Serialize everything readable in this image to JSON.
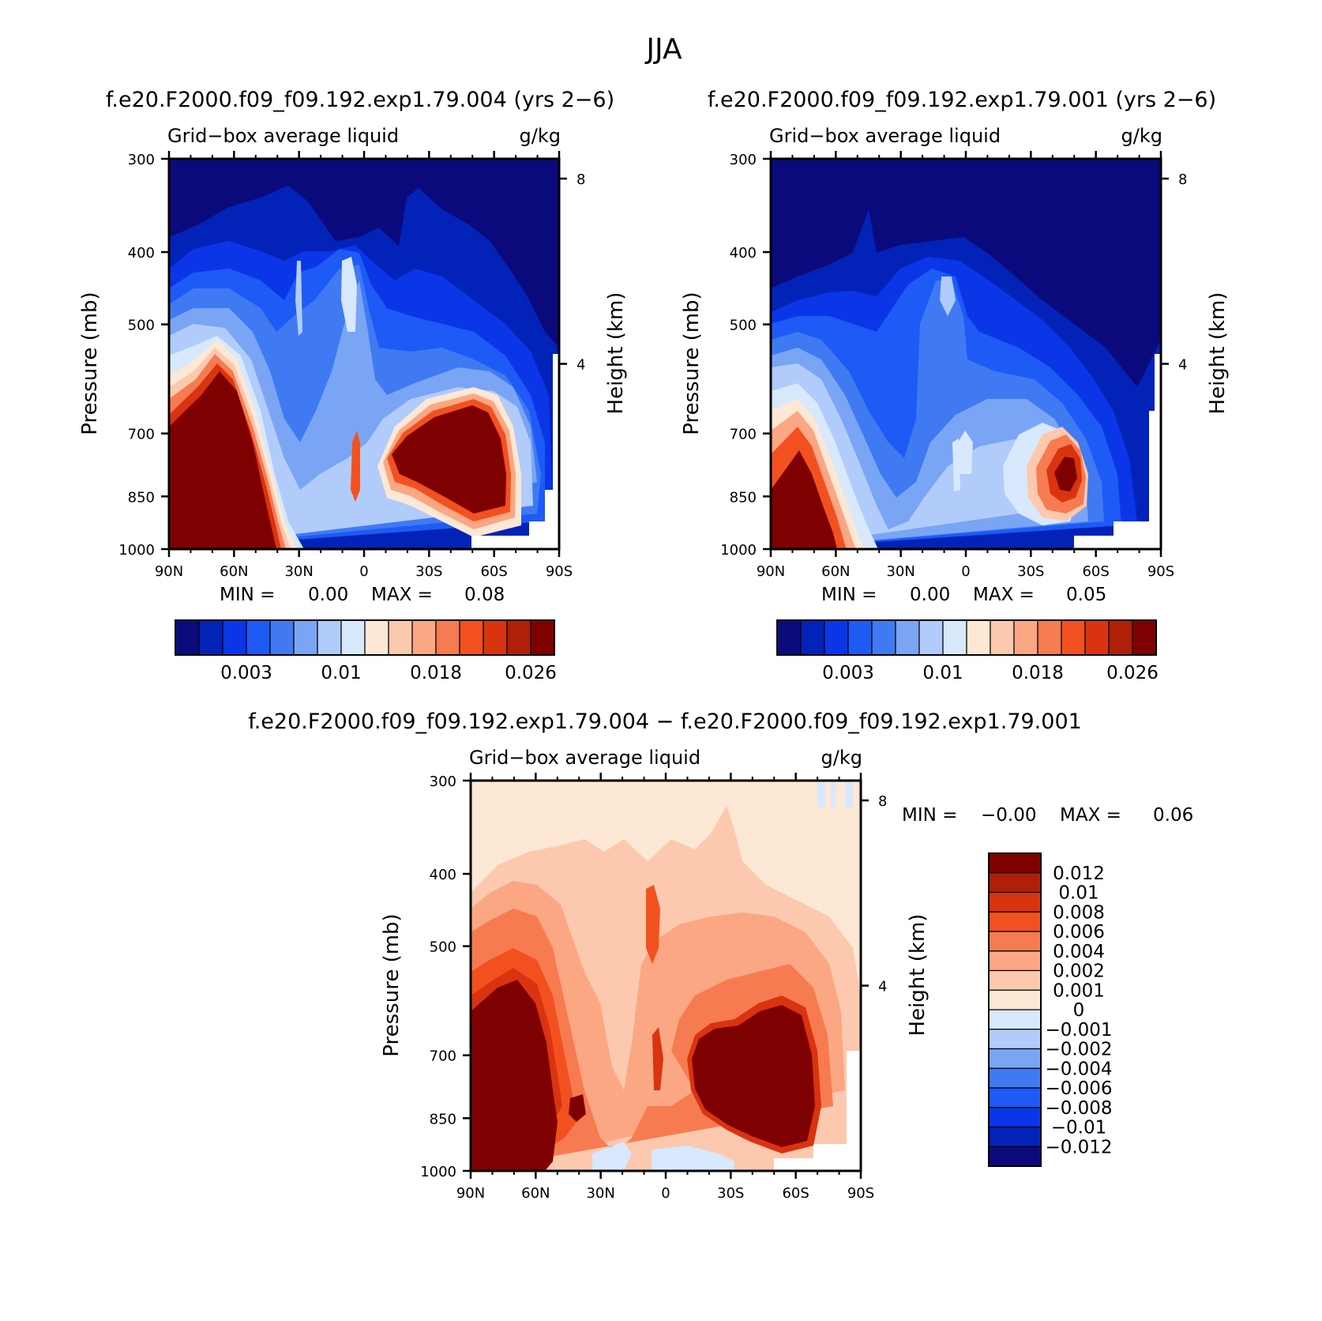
{
  "figure": {
    "title": "JJA"
  },
  "chart_data": [
    {
      "type": "heatmap",
      "title": "f.e20.F2000.f09_f09.192.exp1.79.004 (yrs 2−6)",
      "variable": "Grid−box average liquid",
      "units": "g/kg",
      "ylabel": "Pressure (mb)",
      "y2label": "Height (km)",
      "x_ticks": [
        "90N",
        "60N",
        "30N",
        "0",
        "30S",
        "60S",
        "90S"
      ],
      "y_ticks": [
        "300",
        "400",
        "500",
        "700",
        "850",
        "1000"
      ],
      "y2_ticks": [
        "8",
        "4"
      ],
      "ylim": [
        1000,
        300
      ],
      "stats": {
        "min_label": "MIN =",
        "min": "0.00",
        "max_label": "MAX =",
        "max": "0.08"
      },
      "colorbar": {
        "levels": [
          "0.001",
          "0.002",
          "0.003",
          "0.004",
          "0.006",
          "0.008",
          "0.01",
          "0.012",
          "0.014",
          "0.016",
          "0.018",
          "0.02",
          "0.022",
          "0.024",
          "0.026"
        ],
        "labels": [
          "0.003",
          "0.01",
          "0.018",
          "0.026"
        ],
        "colors": [
          "#0a0a7d",
          "#0322b8",
          "#0a36e8",
          "#1e5af5",
          "#3f7af2",
          "#7aa5f5",
          "#b1ccfa",
          "#d8e8fd",
          "#fde8d5",
          "#fcc9af",
          "#fba784",
          "#f77b50",
          "#f2511f",
          "#d93310",
          "#b01f08",
          "#7f0000"
        ]
      }
    },
    {
      "type": "heatmap",
      "title": "f.e20.F2000.f09_f09.192.exp1.79.001 (yrs 2−6)",
      "variable": "Grid−box average liquid",
      "units": "g/kg",
      "ylabel": "Pressure (mb)",
      "y2label": "Height (km)",
      "x_ticks": [
        "90N",
        "60N",
        "30N",
        "0",
        "30S",
        "60S",
        "90S"
      ],
      "y_ticks": [
        "300",
        "400",
        "500",
        "700",
        "850",
        "1000"
      ],
      "y2_ticks": [
        "8",
        "4"
      ],
      "ylim": [
        1000,
        300
      ],
      "stats": {
        "min_label": "MIN =",
        "min": "0.00",
        "max_label": "MAX =",
        "max": "0.05"
      },
      "colorbar": {
        "levels": [
          "0.001",
          "0.002",
          "0.003",
          "0.004",
          "0.006",
          "0.008",
          "0.01",
          "0.012",
          "0.014",
          "0.016",
          "0.018",
          "0.02",
          "0.022",
          "0.024",
          "0.026"
        ],
        "labels": [
          "0.003",
          "0.01",
          "0.018",
          "0.026"
        ],
        "colors": [
          "#0a0a7d",
          "#0322b8",
          "#0a36e8",
          "#1e5af5",
          "#3f7af2",
          "#7aa5f5",
          "#b1ccfa",
          "#d8e8fd",
          "#fde8d5",
          "#fcc9af",
          "#fba784",
          "#f77b50",
          "#f2511f",
          "#d93310",
          "#b01f08",
          "#7f0000"
        ]
      }
    },
    {
      "type": "heatmap",
      "title": "f.e20.F2000.f09_f09.192.exp1.79.004 − f.e20.F2000.f09_f09.192.exp1.79.001",
      "variable": "Grid−box average liquid",
      "units": "g/kg",
      "ylabel": "Pressure (mb)",
      "y2label": "Height (km)",
      "x_ticks": [
        "90N",
        "60N",
        "30N",
        "0",
        "30S",
        "60S",
        "90S"
      ],
      "y_ticks": [
        "300",
        "400",
        "500",
        "700",
        "850",
        "1000"
      ],
      "y2_ticks": [
        "8",
        "4"
      ],
      "ylim": [
        1000,
        300
      ],
      "stats": {
        "min_label": "MIN =",
        "min": "−0.00",
        "max_label": "MAX =",
        "max": "0.06"
      },
      "colorbar": {
        "labels": [
          "0.012",
          "0.01",
          "0.008",
          "0.006",
          "0.004",
          "0.002",
          "0.001",
          "0",
          "−0.001",
          "−0.002",
          "−0.004",
          "−0.006",
          "−0.008",
          "−0.01",
          "−0.012"
        ],
        "colors": [
          "#7f0000",
          "#b01f08",
          "#d93310",
          "#f2511f",
          "#f77b50",
          "#fba784",
          "#fcc9af",
          "#fde8d5",
          "#d8e8fd",
          "#b1ccfa",
          "#7aa5f5",
          "#3f7af2",
          "#1e5af5",
          "#0a36e8",
          "#0322b8",
          "#0a0a7d"
        ]
      }
    }
  ]
}
